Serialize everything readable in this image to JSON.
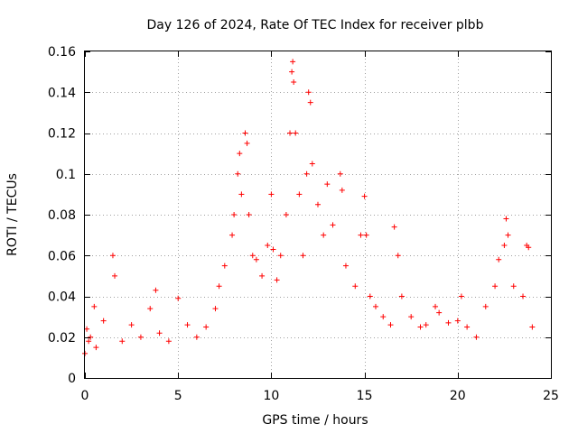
{
  "chart_data": {
    "type": "scatter",
    "title": "Day 126 of 2024, Rate Of TEC Index for receiver plbb",
    "xlabel": "GPS time / hours",
    "ylabel": "ROTI / TECUs",
    "xlim": [
      0,
      25
    ],
    "ylim": [
      0,
      0.16
    ],
    "xticks": [
      0,
      5,
      10,
      15,
      20,
      25
    ],
    "yticks": [
      0,
      0.02,
      0.04,
      0.06,
      0.08,
      0.1,
      0.12,
      0.14,
      0.16
    ],
    "xtick_labels": [
      "0",
      "5",
      "10",
      "15",
      "20",
      "25"
    ],
    "ytick_labels": [
      "0",
      "0.02",
      "0.04",
      "0.06",
      "0.08",
      "0.1",
      "0.12",
      "0.14",
      "0.16"
    ],
    "grid": true,
    "marker": "plus",
    "color": "#ff0000",
    "series": [
      {
        "name": "ROTI",
        "x": [
          0.0,
          0.1,
          0.2,
          0.3,
          0.5,
          0.6,
          1.0,
          1.5,
          1.6,
          2.0,
          2.5,
          3.0,
          3.5,
          3.8,
          4.0,
          4.5,
          5.0,
          5.5,
          6.0,
          6.5,
          7.0,
          7.2,
          7.5,
          7.9,
          8.0,
          8.2,
          8.3,
          8.4,
          8.6,
          8.7,
          8.8,
          9.0,
          9.2,
          9.5,
          9.8,
          10.0,
          10.1,
          10.3,
          10.5,
          10.8,
          11.0,
          11.1,
          11.15,
          11.2,
          11.3,
          11.5,
          11.7,
          11.9,
          12.0,
          12.1,
          12.2,
          12.5,
          12.8,
          13.0,
          13.3,
          13.7,
          13.8,
          14.0,
          14.5,
          14.8,
          15.0,
          15.1,
          15.3,
          15.6,
          16.0,
          16.4,
          16.6,
          16.8,
          17.0,
          17.5,
          18.0,
          18.3,
          18.8,
          19.0,
          19.5,
          20.0,
          20.2,
          20.5,
          21.0,
          21.5,
          22.0,
          22.2,
          22.5,
          22.6,
          22.7,
          23.0,
          23.5,
          23.7,
          23.8,
          24.0
        ],
        "y": [
          0.012,
          0.024,
          0.018,
          0.02,
          0.035,
          0.015,
          0.028,
          0.06,
          0.05,
          0.018,
          0.026,
          0.02,
          0.034,
          0.043,
          0.022,
          0.018,
          0.039,
          0.026,
          0.02,
          0.025,
          0.034,
          0.045,
          0.055,
          0.07,
          0.08,
          0.1,
          0.11,
          0.09,
          0.12,
          0.115,
          0.08,
          0.06,
          0.058,
          0.05,
          0.065,
          0.09,
          0.063,
          0.048,
          0.06,
          0.08,
          0.12,
          0.15,
          0.155,
          0.145,
          0.12,
          0.09,
          0.06,
          0.1,
          0.14,
          0.135,
          0.105,
          0.085,
          0.07,
          0.095,
          0.075,
          0.1,
          0.092,
          0.055,
          0.045,
          0.07,
          0.089,
          0.07,
          0.04,
          0.035,
          0.03,
          0.026,
          0.074,
          0.06,
          0.04,
          0.03,
          0.025,
          0.026,
          0.035,
          0.032,
          0.027,
          0.028,
          0.04,
          0.025,
          0.02,
          0.035,
          0.045,
          0.058,
          0.065,
          0.078,
          0.07,
          0.045,
          0.04,
          0.065,
          0.064,
          0.025
        ]
      }
    ]
  }
}
